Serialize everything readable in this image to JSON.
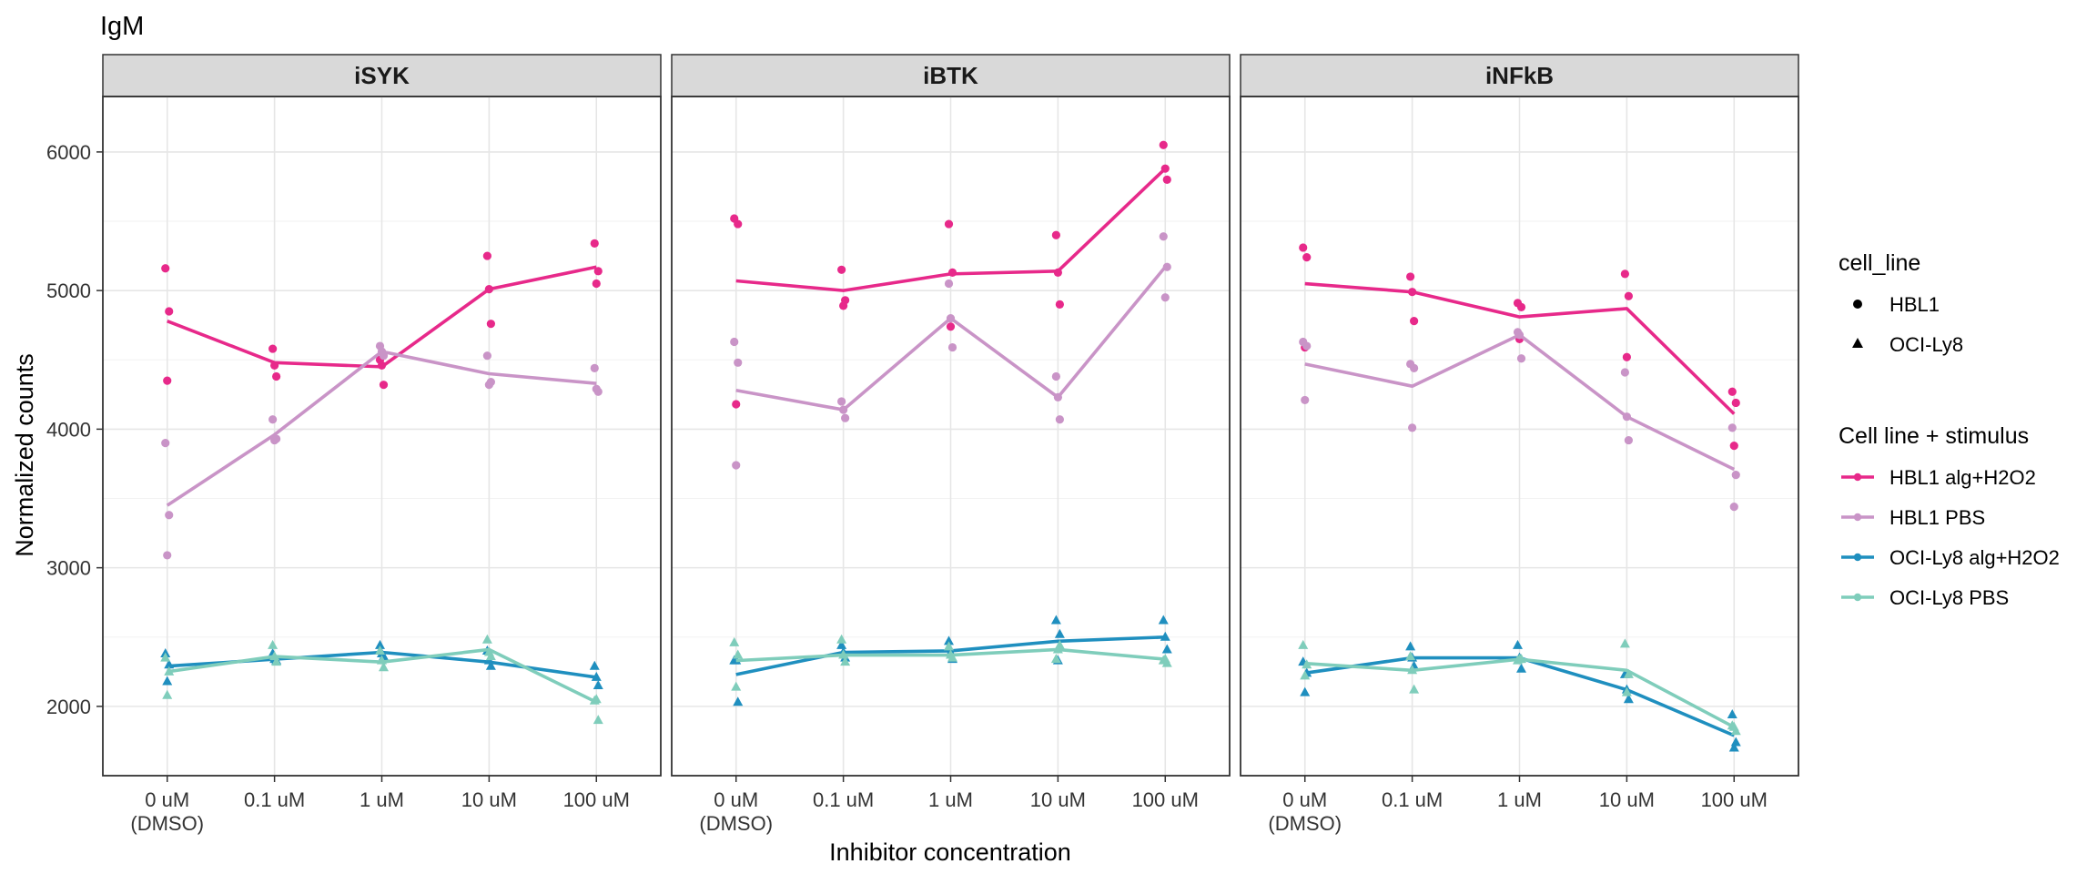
{
  "chart_data": {
    "type": "line",
    "title": "IgM",
    "xlabel": "Inhibitor concentration",
    "ylabel": "Normalized counts",
    "ylim": [
      1500,
      6400
    ],
    "y_ticks": [
      2000,
      3000,
      4000,
      5000,
      6000
    ],
    "grid": true,
    "categories": [
      "0 uM\n(DMSO)",
      "0.1 uM",
      "1 uM",
      "10 uM",
      "100 uM"
    ],
    "legend_placement": "right",
    "legend_shape": {
      "title": "cell_line",
      "items": [
        {
          "label": "HBL1",
          "shape": "circle"
        },
        {
          "label": "OCI-Ly8",
          "shape": "triangle"
        }
      ]
    },
    "legend_color": {
      "title": "Cell line + stimulus",
      "items": [
        {
          "label": "HBL1 alg+H2O2",
          "color": "#E7298A"
        },
        {
          "label": "HBL1 PBS",
          "color": "#C994C7"
        },
        {
          "label": "OCI-Ly8 alg+H2O2",
          "color": "#1F8FBF"
        },
        {
          "label": "OCI-Ly8 PBS",
          "color": "#7FCDBB"
        }
      ]
    },
    "panels": [
      {
        "name": "iSYK",
        "series": [
          {
            "name": "HBL1 alg+H2O2",
            "shape": "circle",
            "color": "#E7298A",
            "line": [
              4780,
              4480,
              4450,
              5010,
              5170
            ],
            "points": [
              [
                5160,
                4850,
                4350
              ],
              [
                4580,
                4380,
                4460
              ],
              [
                4500,
                4320,
                4460
              ],
              [
                5250,
                4760,
                5010
              ],
              [
                5340,
                5140,
                5050
              ]
            ]
          },
          {
            "name": "HBL1 PBS",
            "shape": "circle",
            "color": "#C994C7",
            "line": [
              3450,
              3960,
              4560,
              4400,
              4330
            ],
            "points": [
              [
                3900,
                3380,
                3090
              ],
              [
                4070,
                3930,
                3920
              ],
              [
                4600,
                4530,
                4560
              ],
              [
                4530,
                4340,
                4320
              ],
              [
                4440,
                4270,
                4290
              ]
            ]
          },
          {
            "name": "OCI-Ly8 alg+H2O2",
            "shape": "triangle",
            "color": "#1F8FBF",
            "line": [
              2290,
              2340,
              2390,
              2320,
              2210
            ],
            "points": [
              [
                2380,
                2300,
                2180
              ],
              [
                2380,
                2330,
                2340
              ],
              [
                2440,
                2360,
                2380
              ],
              [
                2400,
                2290,
                2330
              ],
              [
                2290,
                2150,
                2210
              ]
            ]
          },
          {
            "name": "OCI-Ly8 PBS",
            "shape": "triangle",
            "color": "#7FCDBB",
            "line": [
              2250,
              2360,
              2320,
              2410,
              2030
            ],
            "points": [
              [
                2350,
                2250,
                2080
              ],
              [
                2440,
                2320,
                2360
              ],
              [
                2400,
                2280,
                2330
              ],
              [
                2480,
                2360,
                2390
              ],
              [
                2040,
                1900,
                2050
              ]
            ]
          }
        ]
      },
      {
        "name": "iBTK",
        "series": [
          {
            "name": "HBL1 alg+H2O2",
            "shape": "circle",
            "color": "#E7298A",
            "line": [
              5070,
              5000,
              5120,
              5140,
              5880
            ],
            "points": [
              [
                5520,
                5480,
                4180
              ],
              [
                5150,
                4930,
                4890
              ],
              [
                5480,
                5130,
                4740
              ],
              [
                5400,
                4900,
                5130
              ],
              [
                6050,
                5800,
                5880
              ]
            ]
          },
          {
            "name": "HBL1 PBS",
            "shape": "circle",
            "color": "#C994C7",
            "line": [
              4280,
              4140,
              4800,
              4230,
              5170
            ],
            "points": [
              [
                4630,
                4480,
                3740
              ],
              [
                4200,
                4080,
                4140
              ],
              [
                5050,
                4590,
                4800
              ],
              [
                4380,
                4070,
                4230
              ],
              [
                5390,
                5170,
                4950
              ]
            ]
          },
          {
            "name": "OCI-Ly8 alg+H2O2",
            "shape": "triangle",
            "color": "#1F8FBF",
            "line": [
              2230,
              2390,
              2400,
              2470,
              2500
            ],
            "points": [
              [
                2330,
                2030,
                2330
              ],
              [
                2440,
                2350,
                2390
              ],
              [
                2470,
                2340,
                2390
              ],
              [
                2620,
                2520,
                2330
              ],
              [
                2620,
                2410,
                2500
              ]
            ]
          },
          {
            "name": "OCI-Ly8 PBS",
            "shape": "triangle",
            "color": "#7FCDBB",
            "line": [
              2330,
              2370,
              2370,
              2410,
              2340
            ],
            "points": [
              [
                2460,
                2370,
                2140
              ],
              [
                2480,
                2320,
                2370
              ],
              [
                2430,
                2350,
                2370
              ],
              [
                2340,
                2440,
                2410
              ],
              [
                2330,
                2310,
                2340
              ]
            ]
          }
        ]
      },
      {
        "name": "iNFkB",
        "series": [
          {
            "name": "HBL1 alg+H2O2",
            "shape": "circle",
            "color": "#E7298A",
            "line": [
              5050,
              4990,
              4810,
              4870,
              4110
            ],
            "points": [
              [
                5310,
                5240,
                4590
              ],
              [
                5100,
                4780,
                4990
              ],
              [
                4910,
                4880,
                4650
              ],
              [
                5120,
                4960,
                4520
              ],
              [
                4270,
                4190,
                3880
              ]
            ]
          },
          {
            "name": "HBL1 PBS",
            "shape": "circle",
            "color": "#C994C7",
            "line": [
              4470,
              4310,
              4680,
              4090,
              3710
            ],
            "points": [
              [
                4630,
                4600,
                4210
              ],
              [
                4470,
                4440,
                4010
              ],
              [
                4700,
                4510,
                4680
              ],
              [
                4410,
                3920,
                4090
              ],
              [
                4010,
                3670,
                3440
              ]
            ]
          },
          {
            "name": "OCI-Ly8 alg+H2O2",
            "shape": "triangle",
            "color": "#1F8FBF",
            "line": [
              2240,
              2350,
              2350,
              2120,
              1790
            ],
            "points": [
              [
                2320,
                2240,
                2100
              ],
              [
                2430,
                2290,
                2350
              ],
              [
                2440,
                2270,
                2350
              ],
              [
                2230,
                2050,
                2120
              ],
              [
                1940,
                1740,
                1700
              ]
            ]
          },
          {
            "name": "OCI-Ly8 PBS",
            "shape": "triangle",
            "color": "#7FCDBB",
            "line": [
              2310,
              2260,
              2340,
              2260,
              1850
            ],
            "points": [
              [
                2440,
                2300,
                2220
              ],
              [
                2360,
                2120,
                2260
              ],
              [
                2330,
                2340,
                2340
              ],
              [
                2450,
                2230,
                2100
              ],
              [
                1860,
                1820,
                1850
              ]
            ]
          }
        ]
      }
    ]
  }
}
